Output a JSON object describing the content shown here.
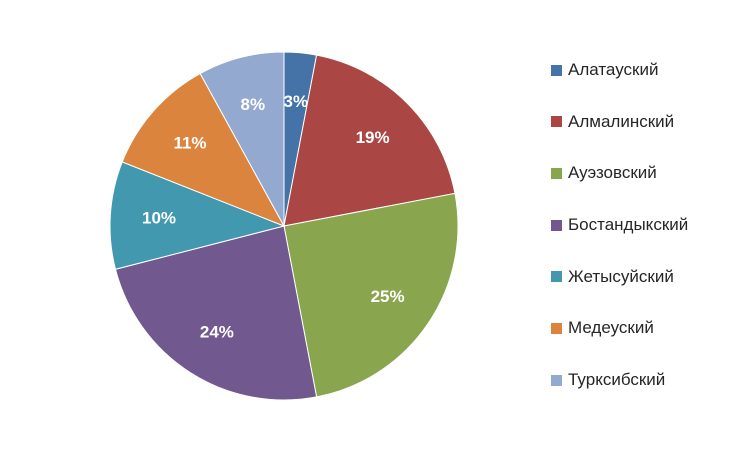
{
  "chart_data": {
    "type": "pie",
    "title": "",
    "categories": [
      "Алатауский",
      "Алмалинский",
      "Ауэзовский",
      "Бостандыкский",
      "Жетысуйский",
      "Медеуский",
      "Турксибский"
    ],
    "values": [
      3,
      19,
      25,
      24,
      10,
      11,
      8
    ],
    "labels": [
      "3%",
      "19%",
      "25%",
      "24%",
      "10%",
      "11%",
      "8%"
    ],
    "colors": [
      "#4572A7",
      "#AA4643",
      "#89A54E",
      "#71588F",
      "#4198AF",
      "#DB843D",
      "#93A9CF"
    ],
    "legend_position": "right"
  }
}
